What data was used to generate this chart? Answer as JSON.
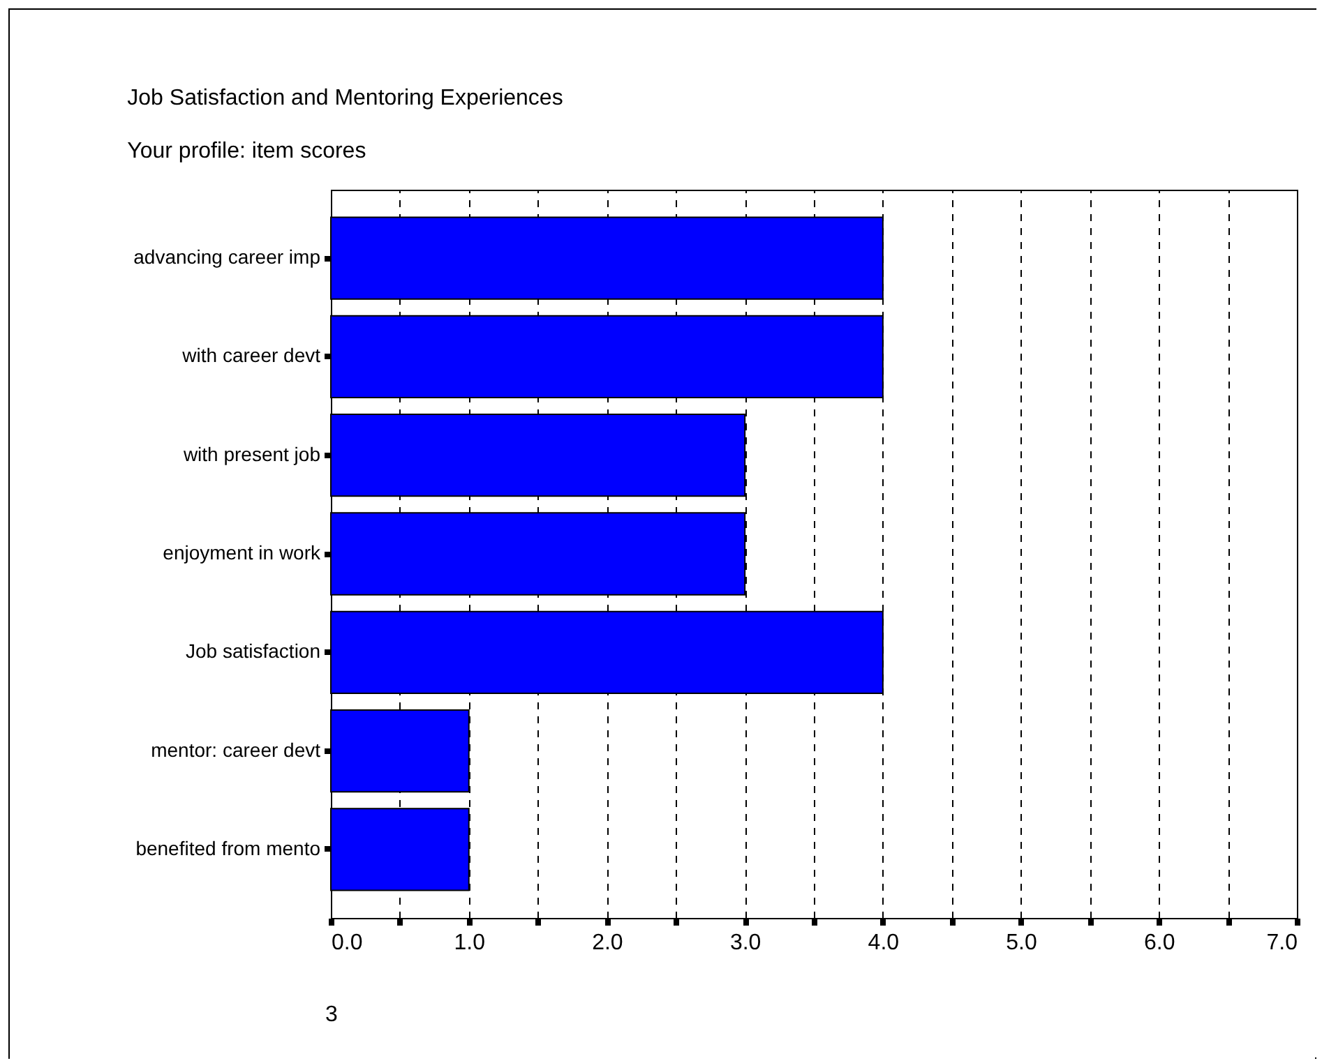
{
  "chart_data": {
    "type": "bar",
    "orientation": "horizontal",
    "title": "Job Satisfaction and Mentoring Experiences",
    "subtitle": "Your profile: item scores",
    "categories": [
      "advancing career imp",
      "with career devt",
      "with present job",
      "enjoyment in work",
      "Job satisfaction",
      "mentor: career devt",
      "benefited from mento"
    ],
    "values": [
      4,
      4,
      3,
      3,
      4,
      1,
      1
    ],
    "color": "#0000ff",
    "xlim": [
      0,
      7
    ],
    "xticks": [
      {
        "value": 0,
        "label": "0.0"
      },
      {
        "value": 0.5,
        "label": null
      },
      {
        "value": 1,
        "label": "1.0"
      },
      {
        "value": 1.5,
        "label": null
      },
      {
        "value": 2,
        "label": "2.0"
      },
      {
        "value": 2.5,
        "label": null
      },
      {
        "value": 3,
        "label": "3.0"
      },
      {
        "value": 3.5,
        "label": null
      },
      {
        "value": 4,
        "label": "4.0"
      },
      {
        "value": 4.5,
        "label": null
      },
      {
        "value": 5,
        "label": "5.0"
      },
      {
        "value": 5.5,
        "label": null
      },
      {
        "value": 6,
        "label": "6.0"
      },
      {
        "value": 6.5,
        "label": null
      },
      {
        "value": 7,
        "label": "7.0"
      }
    ],
    "grid": "x",
    "annotations": [
      "3"
    ]
  }
}
